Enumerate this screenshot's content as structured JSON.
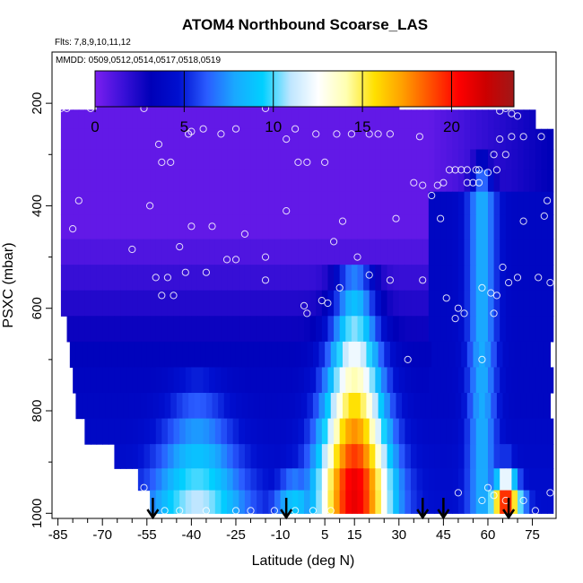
{
  "chart_data": {
    "type": "heatmap",
    "title": "ATOM4 Northbound Scoarse_LAS",
    "flights_label": "Flts: 7,8,9,10,11,12",
    "dates_label": "MMDD: 0509,0512,0514,0517,0518,0519",
    "xlabel": "Latitude (deg N)",
    "ylabel": "PSXC (mbar)",
    "xlim": [
      -87,
      83
    ],
    "ylim": [
      1010,
      100
    ],
    "y_reversed": true,
    "x_ticks": [
      -85,
      -70,
      -55,
      -40,
      -25,
      -10,
      5,
      15,
      30,
      45,
      60,
      75
    ],
    "x_minor_step": 5,
    "y_ticks": [
      200,
      400,
      600,
      800,
      1000
    ],
    "colorbar": {
      "range": [
        0,
        23.5
      ],
      "ticks": [
        0,
        5,
        10,
        15,
        20
      ],
      "colors": [
        "#7b1ff0",
        "#3a10d8",
        "#0000b8",
        "#0010d0",
        "#2a5cff",
        "#1aa8ff",
        "#00d0ff",
        "#bfe6ff",
        "#ffffff",
        "#ffffb0",
        "#ffe000",
        "#ffa000",
        "#ff5000",
        "#ff0000",
        "#cc0000",
        "#a01818"
      ]
    },
    "levels_mbar": [
      195,
      230,
      270,
      310,
      350,
      395,
      440,
      490,
      540,
      590,
      640,
      690,
      740,
      790,
      840,
      890,
      935,
      975
    ],
    "level_lat_range": [
      [
        -72,
        30
      ],
      [
        -84,
        76
      ],
      [
        -84,
        81
      ],
      [
        -84,
        81
      ],
      [
        -84,
        81
      ],
      [
        -84,
        81
      ],
      [
        -84,
        81
      ],
      [
        -84,
        81
      ],
      [
        -84,
        81
      ],
      [
        -84,
        81
      ],
      [
        -82,
        81
      ],
      [
        -81,
        81
      ],
      [
        -80,
        81
      ],
      [
        -79,
        81
      ],
      [
        -76,
        81
      ],
      [
        -66,
        81
      ],
      [
        -58,
        81
      ],
      [
        -54,
        81
      ]
    ],
    "plumes": [
      {
        "lat": 15,
        "peak_p": 940,
        "top_p": 540,
        "peak_conc": 21,
        "top_conc": 7,
        "width": 12
      },
      {
        "lat": -38,
        "peak_p": 975,
        "top_p": 740,
        "peak_conc": 11,
        "top_conc": 5,
        "width": 16
      },
      {
        "lat": 66,
        "peak_p": 975,
        "top_p": 900,
        "peak_conc": 20,
        "top_conc": 6,
        "width": 5
      },
      {
        "lat": -5,
        "peak_p": 975,
        "top_p": 900,
        "peak_conc": 9,
        "top_conc": 5,
        "width": 7
      },
      {
        "lat": 58,
        "peak_p": 380,
        "top_p": 330,
        "peak_conc": 8,
        "top_conc": 6,
        "width": 5
      }
    ],
    "background": {
      "upper_conc": 0.6,
      "mid_conc": 3.5,
      "lower_conc": 4.5,
      "north_conc": 3.8
    },
    "samples": [
      [
        -72,
        190
      ],
      [
        -68,
        190
      ],
      [
        -65,
        190
      ],
      [
        -62,
        190
      ],
      [
        -58,
        190
      ],
      [
        -56,
        210
      ],
      [
        -84,
        210
      ],
      [
        -82,
        210
      ],
      [
        -74,
        210
      ],
      [
        -36,
        250
      ],
      [
        -40,
        255
      ],
      [
        -41,
        260
      ],
      [
        -30,
        260
      ],
      [
        -25,
        250
      ],
      [
        -15,
        210
      ],
      [
        -8,
        270
      ],
      [
        -5,
        250
      ],
      [
        -4,
        315
      ],
      [
        -1,
        315
      ],
      [
        2,
        260
      ],
      [
        5,
        315
      ],
      [
        9,
        260
      ],
      [
        14,
        260
      ],
      [
        20,
        260
      ],
      [
        23,
        260
      ],
      [
        27,
        260
      ],
      [
        31,
        180
      ],
      [
        37,
        265
      ],
      [
        35,
        355
      ],
      [
        38,
        360
      ],
      [
        43,
        360
      ],
      [
        45,
        355
      ],
      [
        47,
        330
      ],
      [
        49,
        330
      ],
      [
        51,
        330
      ],
      [
        53,
        330
      ],
      [
        53,
        355
      ],
      [
        55,
        355
      ],
      [
        56,
        330
      ],
      [
        57,
        330
      ],
      [
        57,
        355
      ],
      [
        60,
        335
      ],
      [
        63,
        330
      ],
      [
        64,
        270
      ],
      [
        68,
        265
      ],
      [
        72,
        265
      ],
      [
        78,
        265
      ],
      [
        64,
        215
      ],
      [
        66,
        210
      ],
      [
        68,
        220
      ],
      [
        70,
        225
      ],
      [
        66,
        300
      ],
      [
        62,
        300
      ],
      [
        41,
        380
      ],
      [
        44,
        425
      ],
      [
        29,
        425
      ],
      [
        11,
        430
      ],
      [
        8,
        470
      ],
      [
        -8,
        410
      ],
      [
        -47,
        315
      ],
      [
        -50,
        315
      ],
      [
        -51,
        280
      ],
      [
        -54,
        400
      ],
      [
        -78,
        390
      ],
      [
        -80,
        445
      ],
      [
        -60,
        485
      ],
      [
        -40,
        440
      ],
      [
        -33,
        440
      ],
      [
        -44,
        480
      ],
      [
        -22,
        455
      ],
      [
        -25,
        505
      ],
      [
        -28,
        505
      ],
      [
        -48,
        540
      ],
      [
        -52,
        540
      ],
      [
        -50,
        575
      ],
      [
        -46,
        575
      ],
      [
        -42,
        530
      ],
      [
        -35,
        530
      ],
      [
        -15,
        500
      ],
      [
        -15,
        545
      ],
      [
        -2,
        595
      ],
      [
        -1,
        610
      ],
      [
        4,
        585
      ],
      [
        6,
        590
      ],
      [
        10,
        560
      ],
      [
        16,
        500
      ],
      [
        20,
        535
      ],
      [
        27,
        545
      ],
      [
        38,
        545
      ],
      [
        46,
        580
      ],
      [
        50,
        600
      ],
      [
        49,
        620
      ],
      [
        52,
        610
      ],
      [
        58,
        560
      ],
      [
        61,
        570
      ],
      [
        63,
        575
      ],
      [
        62,
        610
      ],
      [
        65,
        520
      ],
      [
        67,
        550
      ],
      [
        70,
        540
      ],
      [
        77,
        540
      ],
      [
        81,
        550
      ],
      [
        79,
        420
      ],
      [
        80,
        390
      ],
      [
        72,
        430
      ],
      [
        58,
        700
      ],
      [
        33,
        700
      ],
      [
        -82,
        815
      ],
      [
        -56,
        950
      ],
      [
        -49,
        995
      ],
      [
        -44,
        995
      ],
      [
        -35,
        995
      ],
      [
        -25,
        995
      ],
      [
        -20,
        995
      ],
      [
        -12,
        995
      ],
      [
        -5,
        995
      ],
      [
        1,
        995
      ],
      [
        7,
        995
      ],
      [
        50,
        960
      ],
      [
        58,
        975
      ],
      [
        60,
        950
      ],
      [
        62,
        965
      ],
      [
        66,
        975
      ],
      [
        72,
        975
      ],
      [
        76,
        995
      ],
      [
        81,
        960
      ]
    ],
    "flight_arrows": [
      -53,
      -8,
      38,
      45,
      67
    ]
  }
}
